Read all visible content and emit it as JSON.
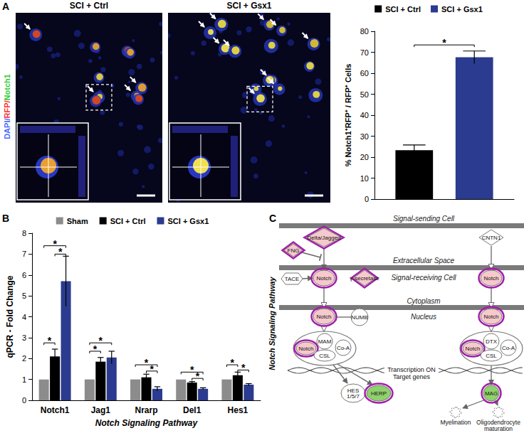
{
  "panel_labels": [
    "A",
    "B",
    "C"
  ],
  "images": {
    "titles": [
      "SCI + Ctrl",
      "SCI + Gsx1"
    ],
    "stain_label": [
      {
        "text": "DAPI/",
        "color": "#4a6bff"
      },
      {
        "text": "RFP/",
        "color": "#ff3030"
      },
      {
        "text": "Notch1",
        "color": "#33cc33"
      }
    ]
  },
  "chart_data": [
    {
      "type": "bar",
      "ylabel": "% Notch1⁺RFP⁺ / RFP⁺ Cells",
      "categories": [
        null
      ],
      "series": [
        {
          "name": "SCI + Ctrl",
          "color": "#000000",
          "values": [
            23.3
          ],
          "errors": [
            2.5
          ]
        },
        {
          "name": "SCI + Gsx1",
          "color": "#2b3b8f",
          "values": [
            67.6
          ],
          "errors": [
            3.0
          ]
        }
      ],
      "ylim": [
        0,
        80
      ],
      "yticks": [
        0,
        10,
        20,
        30,
        40,
        50,
        60,
        70,
        80
      ],
      "grid": false,
      "legend": "top",
      "tick_labels": "y",
      "significance": [
        {
          "category": 0,
          "from": "SCI + Ctrl",
          "to": "SCI + Gsx1",
          "y": 73.5,
          "label": "*"
        }
      ]
    },
    {
      "type": "bar",
      "xlabel": "Notch Signaling Pathway",
      "ylabel": "qPCR - Fold Change",
      "categories": [
        "Notch1",
        "Jag1",
        "Nrarp",
        "Del1",
        "Hes1"
      ],
      "series": [
        {
          "name": "Sham",
          "color": "#8c8c8c",
          "values": [
            1,
            1,
            1,
            1,
            1
          ],
          "errors": [
            0,
            0,
            0,
            0,
            0
          ]
        },
        {
          "name": "SCI + Ctrl",
          "color": "#000000",
          "values": [
            2.1,
            1.85,
            1.1,
            0.85,
            1.2
          ],
          "errors": [
            0.35,
            0.2,
            0.15,
            0.05,
            0.15
          ]
        },
        {
          "name": "SCI + Gsx1",
          "color": "#2b3b8f",
          "values": [
            5.7,
            2.05,
            0.55,
            0.55,
            0.75
          ],
          "errors": [
            1.2,
            0.3,
            0.1,
            0.05,
            0.05
          ]
        }
      ],
      "ylim": [
        0,
        8
      ],
      "yticks": [
        0,
        1,
        2,
        3,
        4,
        5,
        6,
        7,
        8
      ],
      "grid": false,
      "legend": "top",
      "significance": [
        {
          "category": 0,
          "from": "Sham",
          "to": "SCI + Ctrl",
          "y": 2.75,
          "label": "*"
        },
        {
          "category": 0,
          "from": "SCI + Ctrl",
          "to": "SCI + Gsx1",
          "y": 7.0,
          "label": "*"
        },
        {
          "category": 0,
          "from": "Sham",
          "to": "SCI + Gsx1",
          "y": 7.4,
          "label": "*"
        },
        {
          "category": 1,
          "from": "Sham",
          "to": "SCI + Ctrl",
          "y": 2.35,
          "label": "*"
        },
        {
          "category": 1,
          "from": "Sham",
          "to": "SCI + Gsx1",
          "y": 2.75,
          "label": "*"
        },
        {
          "category": 2,
          "from": "Sham",
          "to": "SCI + Gsx1",
          "y": 1.7,
          "label": "*"
        },
        {
          "category": 2,
          "from": "SCI + Ctrl",
          "to": "SCI + Gsx1",
          "y": 1.4,
          "label": "*"
        },
        {
          "category": 3,
          "from": "Sham",
          "to": "SCI + Gsx1",
          "y": 1.35,
          "label": "*"
        },
        {
          "category": 3,
          "from": "SCI + Ctrl",
          "to": "SCI + Gsx1",
          "y": 1.05,
          "label": "*"
        },
        {
          "category": 4,
          "from": "Sham",
          "to": "SCI + Ctrl",
          "y": 1.7,
          "label": "*"
        },
        {
          "category": 4,
          "from": "SCI + Ctrl",
          "to": "SCI + Gsx1",
          "y": 1.45,
          "label": "*"
        }
      ]
    }
  ],
  "diagram": {
    "title": "Notch Signaling Pathway",
    "compartments": [
      "Signal-sending Cell",
      "Extracellular Space",
      "Signal-receiving Cell",
      "Cytoplasm",
      "Nucleus"
    ],
    "transcription_label": [
      "Transcription ON",
      "Target genes"
    ],
    "nodes": [
      {
        "label": "Delta/Jagged",
        "color": "#f6c9cc",
        "highlight": true
      },
      {
        "label": "FNG",
        "color": "#f6c9cc",
        "highlight": true
      },
      {
        "label": "TACE",
        "color": "#ffffff",
        "highlight": false
      },
      {
        "label": "Notch",
        "color": "#f6c9cc",
        "highlight": true
      },
      {
        "label": "γ-secretase",
        "color": "#f6c9cc",
        "highlight": true
      },
      {
        "label": "Notch",
        "color": "#f6c9cc",
        "highlight": true
      },
      {
        "label": "NUMB",
        "color": "#ffffff",
        "highlight": false
      },
      {
        "label": "Notch",
        "color": "#f6c9cc",
        "highlight": true
      },
      {
        "label": "MAM",
        "color": "#ffffff",
        "highlight": false
      },
      {
        "label": "Co-A",
        "color": "#ffffff",
        "highlight": false
      },
      {
        "label": "CSL",
        "color": "#ffffff",
        "highlight": false
      },
      {
        "label": [
          "HES",
          "1/5/7"
        ],
        "color": "#ffffff",
        "highlight": false
      },
      {
        "label": "HERP",
        "color": "#8fd16c",
        "highlight": true
      },
      {
        "label": "CNTN1",
        "color": "#ffffff",
        "highlight": false
      },
      {
        "label": "Notch",
        "color": "#f6c9cc",
        "highlight": true
      },
      {
        "label": "Notch",
        "color": "#f6c9cc",
        "highlight": true
      },
      {
        "label": "Notch",
        "color": "#f6c9cc",
        "highlight": true
      },
      {
        "label": "DTX",
        "color": "#ffffff",
        "highlight": false
      },
      {
        "label": "Co-A",
        "color": "#ffffff",
        "highlight": false
      },
      {
        "label": "CSL",
        "color": "#ffffff",
        "highlight": false
      },
      {
        "label": "MAG",
        "color": "#8fd16c",
        "highlight": true
      },
      {
        "label": "Myelination",
        "color": "#ffffff",
        "highlight": false
      },
      {
        "label": [
          "Oligodendrocyte",
          "maturation"
        ],
        "color": "#ffffff",
        "highlight": false
      }
    ]
  }
}
